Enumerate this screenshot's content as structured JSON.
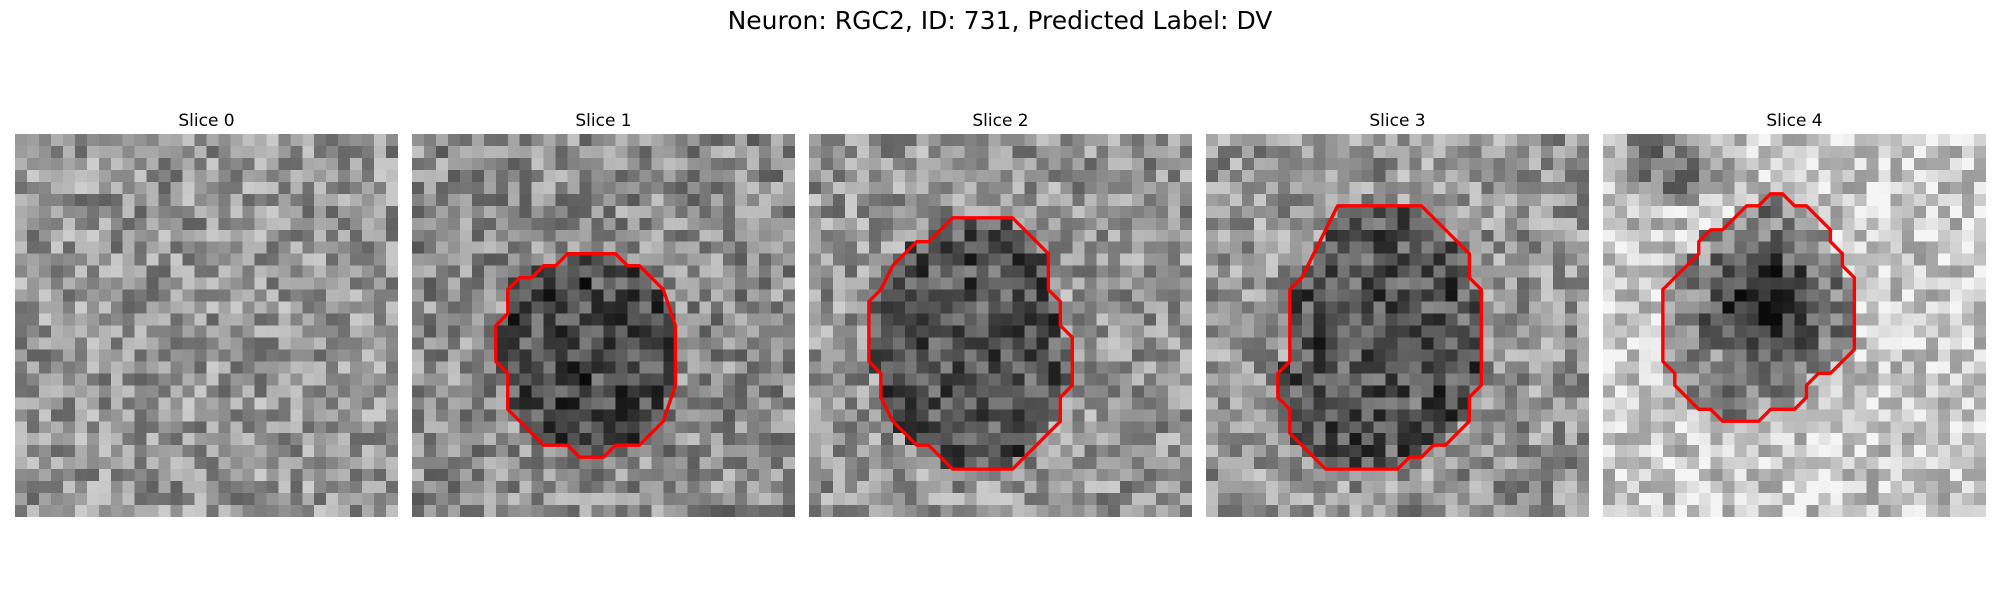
{
  "figure": {
    "title": "Neuron: RGC2, ID: 731, Predicted Label: DV"
  },
  "panels": [
    {
      "title": "Slice 0",
      "contour": [],
      "features": []
    },
    {
      "title": "Slice 1",
      "contour": [
        [
          14,
          10
        ],
        [
          17,
          10
        ],
        [
          18,
          11
        ],
        [
          19,
          11
        ],
        [
          20,
          12
        ],
        [
          21,
          13
        ],
        [
          22,
          16
        ],
        [
          22,
          21
        ],
        [
          21,
          24
        ],
        [
          20,
          25
        ],
        [
          19,
          26
        ],
        [
          17,
          26
        ],
        [
          16,
          27
        ],
        [
          14,
          27
        ],
        [
          13,
          26
        ],
        [
          11,
          26
        ],
        [
          10,
          25
        ],
        [
          9,
          24
        ],
        [
          8,
          23
        ],
        [
          8,
          20
        ],
        [
          7,
          19
        ],
        [
          7,
          16
        ],
        [
          8,
          15
        ],
        [
          8,
          13
        ],
        [
          9,
          12
        ],
        [
          10,
          12
        ],
        [
          11,
          11
        ],
        [
          12,
          11
        ],
        [
          13,
          10
        ]
      ],
      "features": []
    },
    {
      "title": "Slice 2",
      "contour": [
        [
          12,
          7
        ],
        [
          17,
          7
        ],
        [
          18,
          8
        ],
        [
          19,
          9
        ],
        [
          20,
          10
        ],
        [
          20,
          13
        ],
        [
          21,
          14
        ],
        [
          21,
          16
        ],
        [
          22,
          17
        ],
        [
          22,
          21
        ],
        [
          21,
          22
        ],
        [
          21,
          24
        ],
        [
          20,
          25
        ],
        [
          18,
          27
        ],
        [
          17,
          28
        ],
        [
          12,
          28
        ],
        [
          11,
          27
        ],
        [
          10,
          26
        ],
        [
          9,
          26
        ],
        [
          8,
          25
        ],
        [
          7,
          24
        ],
        [
          6,
          22
        ],
        [
          6,
          20
        ],
        [
          5,
          19
        ],
        [
          5,
          14
        ],
        [
          6,
          13
        ],
        [
          7,
          11
        ],
        [
          8,
          10
        ],
        [
          9,
          9
        ],
        [
          10,
          9
        ],
        [
          11,
          8
        ]
      ],
      "features": []
    },
    {
      "title": "Slice 3",
      "contour": [
        [
          11,
          6
        ],
        [
          18,
          6
        ],
        [
          19,
          7
        ],
        [
          20,
          8
        ],
        [
          21,
          9
        ],
        [
          22,
          10
        ],
        [
          22,
          12
        ],
        [
          23,
          13
        ],
        [
          23,
          21
        ],
        [
          22,
          22
        ],
        [
          22,
          24
        ],
        [
          21,
          25
        ],
        [
          20,
          26
        ],
        [
          19,
          26
        ],
        [
          18,
          27
        ],
        [
          17,
          27
        ],
        [
          16,
          28
        ],
        [
          10,
          28
        ],
        [
          9,
          27
        ],
        [
          8,
          26
        ],
        [
          7,
          25
        ],
        [
          7,
          23
        ],
        [
          6,
          22
        ],
        [
          6,
          20
        ],
        [
          7,
          19
        ],
        [
          7,
          13
        ],
        [
          8,
          12
        ],
        [
          9,
          10
        ],
        [
          10,
          8
        ]
      ],
      "features": []
    },
    {
      "title": "Slice 4",
      "contour": [
        [
          14,
          5
        ],
        [
          15,
          5
        ],
        [
          16,
          6
        ],
        [
          17,
          6
        ],
        [
          18,
          7
        ],
        [
          19,
          8
        ],
        [
          19,
          9
        ],
        [
          20,
          10
        ],
        [
          20,
          11
        ],
        [
          21,
          12
        ],
        [
          21,
          18
        ],
        [
          20,
          19
        ],
        [
          19,
          20
        ],
        [
          18,
          20
        ],
        [
          17,
          21
        ],
        [
          17,
          22
        ],
        [
          16,
          23
        ],
        [
          14,
          23
        ],
        [
          13,
          24
        ],
        [
          10,
          24
        ],
        [
          9,
          23
        ],
        [
          8,
          23
        ],
        [
          7,
          22
        ],
        [
          6,
          21
        ],
        [
          6,
          20
        ],
        [
          5,
          19
        ],
        [
          5,
          13
        ],
        [
          6,
          12
        ],
        [
          7,
          11
        ],
        [
          8,
          10
        ],
        [
          8,
          9
        ],
        [
          9,
          8
        ],
        [
          10,
          8
        ],
        [
          11,
          7
        ],
        [
          12,
          6
        ],
        [
          13,
          6
        ]
      ],
      "features": [
        {
          "type": "dark-blob",
          "cx": 5,
          "cy": 2,
          "rx": 6,
          "ry": 4
        },
        {
          "type": "dark-blob",
          "cx": 13,
          "cy": 14,
          "rx": 6,
          "ry": 6
        }
      ]
    }
  ],
  "colors": {
    "contour": "#ff0000",
    "background": "#ffffff"
  }
}
